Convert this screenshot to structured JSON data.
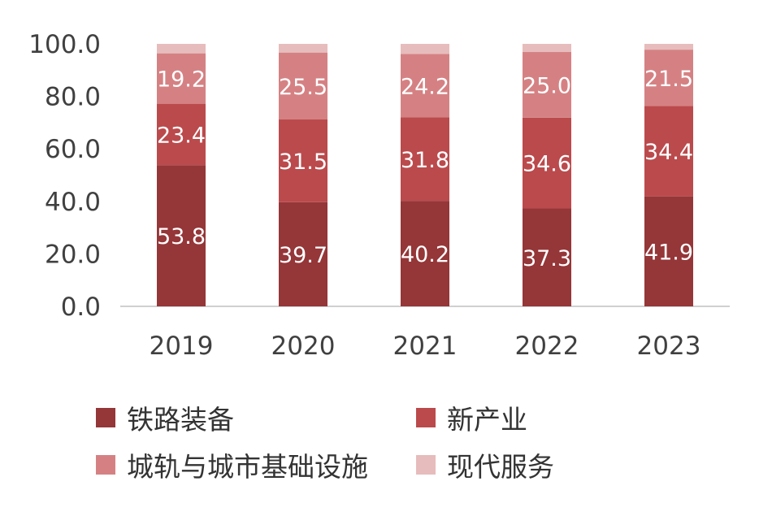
{
  "chart_data": {
    "type": "bar",
    "stacked": true,
    "categories": [
      "2019",
      "2020",
      "2021",
      "2022",
      "2023"
    ],
    "ylim": [
      0,
      100
    ],
    "yticks": [
      "0.0",
      "20.0",
      "40.0",
      "60.0",
      "80.0",
      "100.0"
    ],
    "series": [
      {
        "name": "铁路装备",
        "color": "#953638",
        "values": [
          53.8,
          39.7,
          40.2,
          37.3,
          41.9
        ],
        "labels": [
          "53.8",
          "39.7",
          "40.2",
          "37.3",
          "41.9"
        ]
      },
      {
        "name": "新产业",
        "color": "#bb4a4c",
        "values": [
          23.4,
          31.5,
          31.8,
          34.6,
          34.4
        ],
        "labels": [
          "23.4",
          "31.5",
          "31.8",
          "34.6",
          "34.4"
        ]
      },
      {
        "name": "城轨与城市基础设施",
        "color": "#d58183",
        "values": [
          19.2,
          25.5,
          24.2,
          25.0,
          21.5
        ],
        "labels": [
          "19.2",
          "25.5",
          "24.2",
          "25.0",
          "21.5"
        ]
      },
      {
        "name": "现代服务",
        "color": "#e7bcbc",
        "values": [
          3.6,
          3.3,
          3.8,
          3.1,
          2.2
        ],
        "labels": [
          "",
          "",
          "",
          "",
          ""
        ]
      }
    ],
    "legend_position": "bottom",
    "grid": false
  }
}
